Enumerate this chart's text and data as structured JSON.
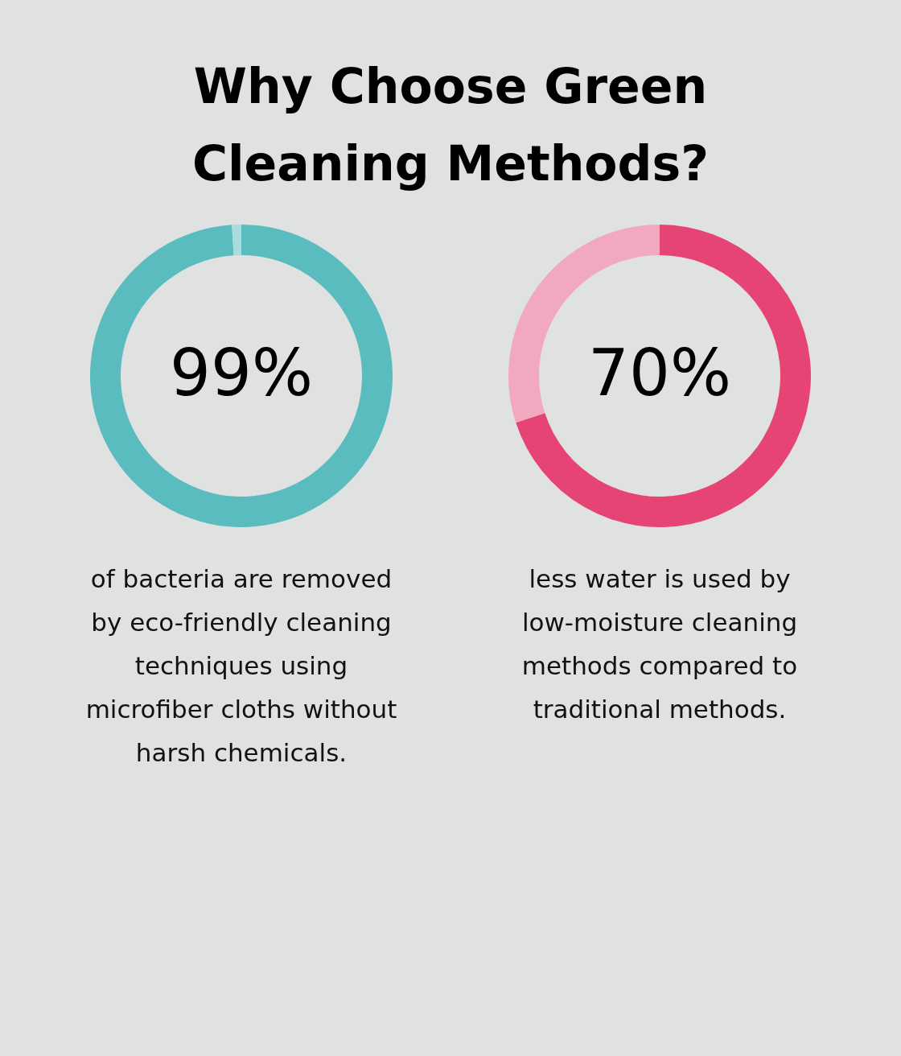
{
  "chart_data": [
    {
      "type": "donut",
      "title": "Why Choose Green Cleaning Methods?",
      "categories": [
        null,
        null
      ],
      "values": [
        99,
        1
      ],
      "colors": [
        "#5bbcbf",
        "#a9dcdc"
      ],
      "value_labels": [
        "99%",
        null
      ],
      "annotations": [
        "of bacteria are removed by eco-friendly cleaning techniques using microfiber cloths without harsh chemicals."
      ]
    },
    {
      "type": "donut",
      "categories": [
        null,
        null
      ],
      "values": [
        70,
        30
      ],
      "colors": [
        "#e54475",
        "#f2a8be"
      ],
      "value_labels": [
        "70%",
        null
      ],
      "annotations": [
        "less water is used by low-moisture cleaning methods compared to traditional methods."
      ]
    }
  ]
}
